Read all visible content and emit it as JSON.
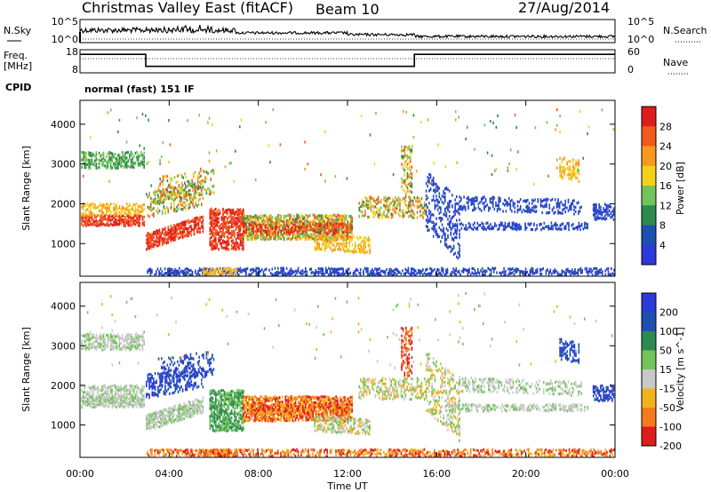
{
  "header": {
    "title": "Christmas Valley East (fitACF)",
    "beam": "Beam 10",
    "date": "27/Aug/2014"
  },
  "chart_data": [
    {
      "type": "line",
      "panel": "noise",
      "left_label": "N.Sky",
      "right_label": "N.Search",
      "y_left_ticks": [
        "10^5",
        "10^0"
      ],
      "y_right_ticks": [
        "10^5",
        "10^0"
      ]
    },
    {
      "type": "line",
      "panel": "frequency",
      "left_label": "Freq. [MHz]",
      "right_label": "Nave",
      "y_left_ticks": [
        "18",
        "8"
      ],
      "y_right_ticks": [
        "60",
        "0"
      ],
      "series": [
        {
          "x": [
            0.0,
            2.95,
            2.95,
            15.0,
            15.0,
            24.0
          ],
          "values": [
            16.0,
            16.0,
            10.8,
            10.8,
            16.0,
            16.0
          ]
        }
      ]
    },
    {
      "type": "heatmap",
      "panel": "power",
      "ylabel": "Slant Range [km]",
      "colorbar_label": "Power [dB]",
      "colorbar_ticks": [
        "28",
        "24",
        "20",
        "16",
        "12",
        "8",
        "4"
      ],
      "colors": [
        "#2a3ad8",
        "#1f4fb0",
        "#2d8a4e",
        "#72c45a",
        "#f2d21b",
        "#f59a1e",
        "#f35a1c",
        "#e01b1b"
      ],
      "y_ticks": [
        1000,
        2000,
        3000,
        4000
      ],
      "ylim": [
        180,
        4600
      ]
    },
    {
      "type": "heatmap",
      "panel": "velocity",
      "ylabel": "Slant Range [km]",
      "colorbar_label": "Velocity [m s^-1]",
      "colorbar_ticks": [
        "200",
        "100",
        "50",
        "15",
        "-15",
        "-50",
        "-100",
        "-200"
      ],
      "colors": [
        "#2a3ad8",
        "#1f4fb0",
        "#2d8a4e",
        "#72c45a",
        "#c8c8c8",
        "#f2b21b",
        "#f57a1e",
        "#e01b1b"
      ],
      "y_ticks": [
        1000,
        2000,
        3000,
        4000
      ],
      "ylim": [
        180,
        4600
      ]
    }
  ],
  "cpid": {
    "label": "CPID",
    "text": "normal (fast) 151 IF"
  },
  "x_axis": {
    "label": "Time UT",
    "tick_labels": [
      "00:00",
      "04:00",
      "08:00",
      "12:00",
      "16:00",
      "20:00",
      "00:00"
    ],
    "xlim": [
      0,
      24
    ]
  }
}
